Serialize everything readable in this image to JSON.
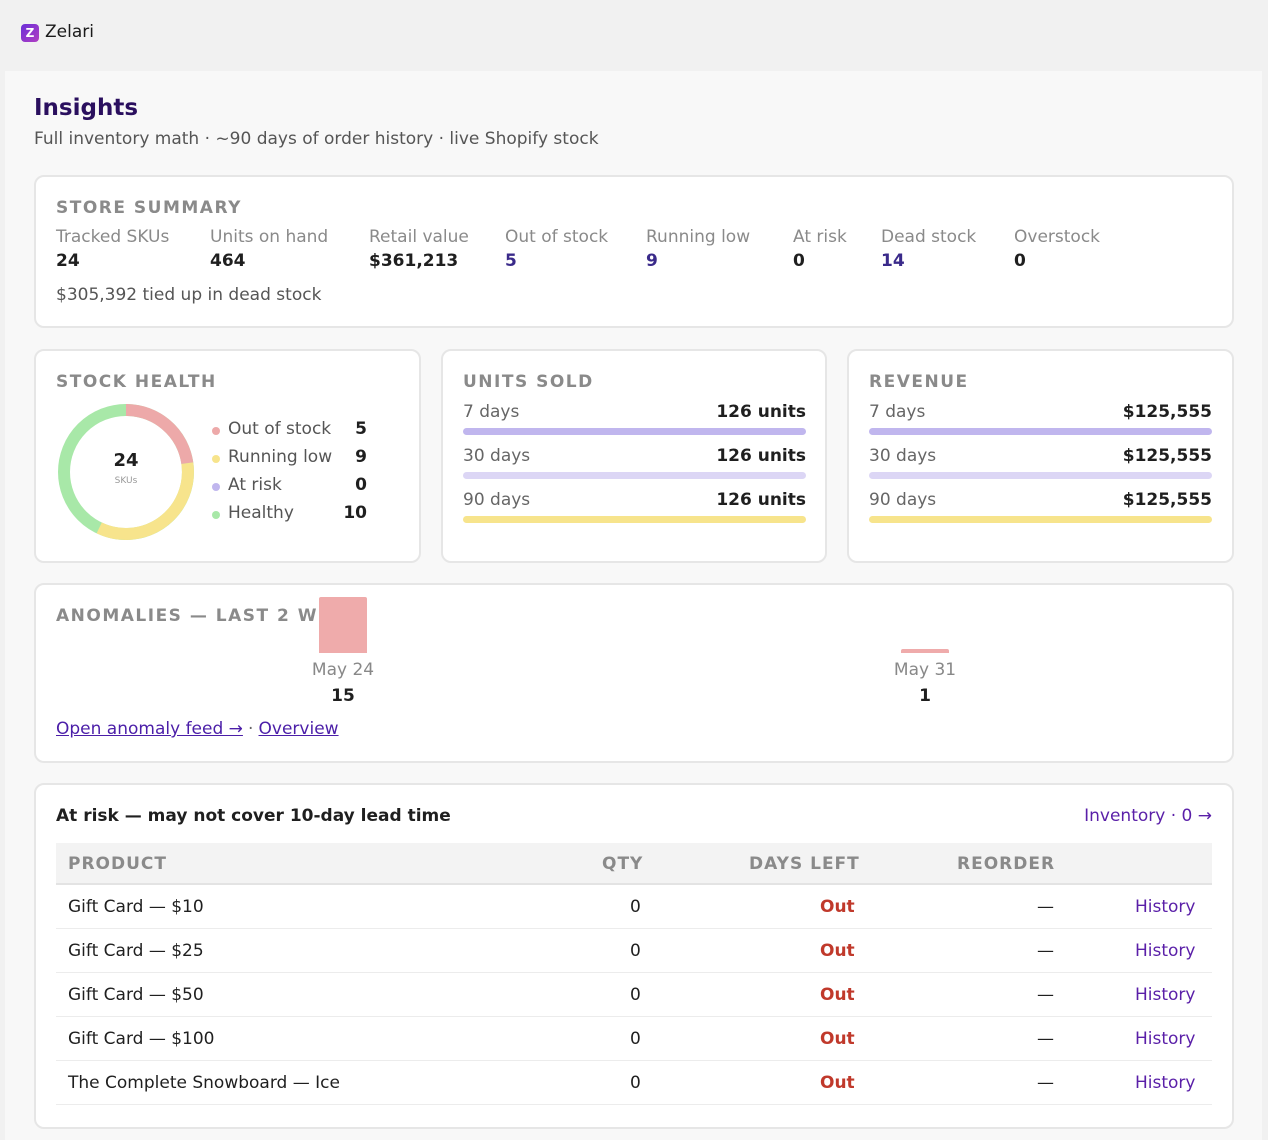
{
  "app": {
    "logo_letter": "Z",
    "name": "Zelari"
  },
  "header": {
    "title": "Insights",
    "subtitle": "Full inventory math · ~90 days of order history · live Shopify stock"
  },
  "store_summary": {
    "label": "STORE SUMMARY",
    "stats": [
      {
        "label": "Tracked SKUs",
        "value": "24"
      },
      {
        "label": "Units on hand",
        "value": "464"
      },
      {
        "label": "Retail value",
        "value": "$361,213"
      },
      {
        "label": "Out of stock",
        "value": "5"
      },
      {
        "label": "Running low",
        "value": "9"
      },
      {
        "label": "At risk",
        "value": "0"
      },
      {
        "label": "Dead stock",
        "value": "14"
      },
      {
        "label": "Overstock",
        "value": "0"
      }
    ],
    "dead_stock_note": "$305,392 tied up in dead stock"
  },
  "stock_health": {
    "label": "STOCK HEALTH",
    "total": "24",
    "total_unit": "SKUs",
    "legend": [
      {
        "label": "Out of stock",
        "value": "5",
        "color": "#eda9a9"
      },
      {
        "label": "Running low",
        "value": "9",
        "color": "#f7e48c"
      },
      {
        "label": "At risk",
        "value": "0",
        "color": "#c0b6ee"
      },
      {
        "label": "Healthy",
        "value": "10",
        "color": "#a8e8a8"
      }
    ]
  },
  "units_sold": {
    "label": "UNITS SOLD",
    "rows": [
      {
        "period": "7 days",
        "value": "126 units",
        "color": "#c0b6ee"
      },
      {
        "period": "30 days",
        "value": "126 units",
        "color": "#dcd6f5"
      },
      {
        "period": "90 days",
        "value": "126 units",
        "color": "#f7e48c"
      }
    ]
  },
  "revenue": {
    "label": "REVENUE",
    "rows": [
      {
        "period": "7 days",
        "value": "$125,555",
        "color": "#c0b6ee"
      },
      {
        "period": "30 days",
        "value": "$125,555",
        "color": "#dcd6f5"
      },
      {
        "period": "90 days",
        "value": "$125,555",
        "color": "#f7e48c"
      }
    ]
  },
  "anomalies": {
    "label": "ANOMALIES — LAST 2 WE",
    "bars": [
      {
        "date": "May 24",
        "count": "15",
        "value": 15
      },
      {
        "date": "May 31",
        "count": "1",
        "value": 1
      }
    ],
    "bar_color": "#efabab",
    "feed_link": "Open anomaly feed →",
    "separator": "·",
    "overview_link": "Overview"
  },
  "at_risk": {
    "title": "At risk — may not cover 10-day lead time",
    "inventory_link": "Inventory · 0 →",
    "columns": [
      "PRODUCT",
      "QTY",
      "DAYS LEFT",
      "REORDER"
    ],
    "rows": [
      {
        "product": "Gift Card — $10",
        "qty": "0",
        "days_left": "Out",
        "reorder": "—",
        "action": "History"
      },
      {
        "product": "Gift Card — $25",
        "qty": "0",
        "days_left": "Out",
        "reorder": "—",
        "action": "History"
      },
      {
        "product": "Gift Card — $50",
        "qty": "0",
        "days_left": "Out",
        "reorder": "—",
        "action": "History"
      },
      {
        "product": "Gift Card — $100",
        "qty": "0",
        "days_left": "Out",
        "reorder": "—",
        "action": "History"
      },
      {
        "product": "The Complete Snowboard — Ice",
        "qty": "0",
        "days_left": "Out",
        "reorder": "—",
        "action": "History"
      }
    ],
    "out_color": "#c0392b",
    "link_color": "#5a1fa8"
  }
}
